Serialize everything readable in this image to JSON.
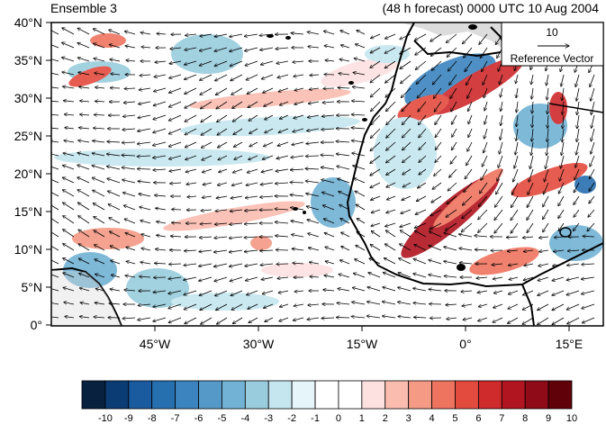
{
  "header": {
    "left_title": "Ensemble 3",
    "right_title": "(48 h forecast) 0000 UTC 10 Aug 2004"
  },
  "axes": {
    "lat_labels": [
      "40°N",
      "35°N",
      "30°N",
      "25°N",
      "20°N",
      "15°N",
      "10°N",
      "5°N",
      "0°"
    ],
    "lon_labels": [
      "45°W",
      "30°W",
      "15°W",
      "0°",
      "15°E"
    ],
    "lat_range": [
      0,
      40
    ],
    "lon_range": [
      -60,
      20
    ]
  },
  "reference_vector": {
    "magnitude": "10",
    "label": "Reference Vector"
  },
  "colorbar": {
    "labels": [
      "-10",
      "-9",
      "-8",
      "-7",
      "-6",
      "-5",
      "-4",
      "-3",
      "-2",
      "-1",
      "0",
      "1",
      "2",
      "3",
      "4",
      "5",
      "6",
      "7",
      "8",
      "9",
      "10"
    ],
    "colors": [
      "#08213f",
      "#0b3c73",
      "#1a5a9e",
      "#2770b0",
      "#3b84bf",
      "#5499c8",
      "#72b2d4",
      "#99cddd",
      "#c5e6ef",
      "#e6f5fa",
      "#ffffff",
      "#ffffff",
      "#fde0e0",
      "#fbbcb0",
      "#f59a84",
      "#ef745f",
      "#e44b3f",
      "#cf2a2c",
      "#b1151f",
      "#8e0b17",
      "#600009"
    ]
  }
}
